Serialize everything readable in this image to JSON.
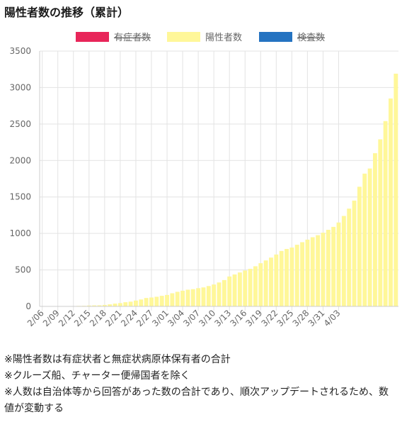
{
  "title": "陽性者数の推移（累計）",
  "notes": [
    "※陽性者数は有症状者と無症状病原体保有者の合計",
    "※クルーズ船、チャーター便帰国者を除く",
    "※人数は自治体等から回答があった数の合計であり、順次アップデートされるため、数値が変動する"
  ],
  "colors": {
    "symptomatic": "#e8265a",
    "positive": "#fff799",
    "tested": "#2573c1",
    "grid": "#e3e3e3",
    "axis": "#666666"
  },
  "chart_data": {
    "type": "bar",
    "legend": [
      {
        "name": "有症者数",
        "color": "#e8265a",
        "hidden": true
      },
      {
        "name": "陽性者数",
        "color": "#fff799",
        "hidden": false
      },
      {
        "name": "検査数",
        "color": "#2573c1",
        "hidden": true
      }
    ],
    "legend_position": "top",
    "grid": true,
    "ylim": [
      0,
      3500
    ],
    "y_ticks": [
      0,
      500,
      1000,
      1500,
      2000,
      2500,
      3000,
      3500
    ],
    "x_tick_labels": [
      "2/06",
      "2/09",
      "2/12",
      "2/15",
      "2/18",
      "2/21",
      "2/24",
      "2/27",
      "3/01",
      "3/04",
      "3/07",
      "3/10",
      "3/13",
      "3/16",
      "3/19",
      "3/22",
      "3/25",
      "3/28",
      "3/31",
      "4/03"
    ],
    "series": [
      {
        "name": "陽性者数",
        "color": "#fff799",
        "values": [
          3,
          3,
          3,
          3,
          4,
          4,
          5,
          7,
          8,
          12,
          14,
          15,
          20,
          28,
          38,
          45,
          57,
          65,
          80,
          95,
          115,
          122,
          132,
          145,
          157,
          180,
          200,
          215,
          229,
          236,
          250,
          260,
          279,
          300,
          328,
          361,
          410,
          438,
          465,
          492,
          515,
          550,
          592,
          630,
          669,
          711,
          760,
          787,
          807,
          845,
          880,
          915,
          948,
          976,
          1010,
          1050,
          1090,
          1150,
          1240,
          1340,
          1450,
          1640,
          1820,
          1890,
          2100,
          2290,
          2540,
          2850,
          3190
        ]
      }
    ]
  }
}
